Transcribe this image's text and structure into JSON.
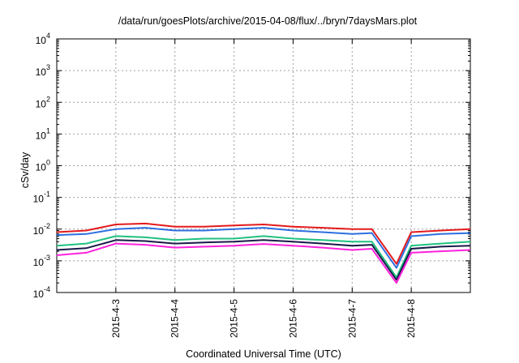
{
  "chart_data": {
    "type": "line",
    "title": "/data/run/goesPlots/archive/2015-04-08/flux/../bryn/7daysMars.plot",
    "xlabel": "Coordinated Universal Time (UTC)",
    "ylabel": "cSv/day",
    "yscale": "log",
    "ylim": [
      0.0001,
      10000
    ],
    "y_ticks": [
      {
        "base": "10",
        "exp": "-4"
      },
      {
        "base": "10",
        "exp": "-3"
      },
      {
        "base": "10",
        "exp": "-2"
      },
      {
        "base": "10",
        "exp": "-1"
      },
      {
        "base": "10",
        "exp": "0"
      },
      {
        "base": "10",
        "exp": "1"
      },
      {
        "base": "10",
        "exp": "2"
      },
      {
        "base": "10",
        "exp": "3"
      },
      {
        "base": "10",
        "exp": "4"
      }
    ],
    "xlim": [
      "2015-04-02",
      "2015-04-09"
    ],
    "x_ticks": [
      "2015-4-3",
      "2015-4-4",
      "2015-4-5",
      "2015-4-6",
      "2015-4-7",
      "2015-4-8"
    ],
    "grid": true,
    "x": [
      "2015-04-02",
      "2015-04-02 12:00",
      "2015-04-03",
      "2015-04-03 12:00",
      "2015-04-04",
      "2015-04-04 12:00",
      "2015-04-05",
      "2015-04-05 12:00",
      "2015-04-06",
      "2015-04-06 12:00",
      "2015-04-07",
      "2015-04-07 08:00",
      "2015-04-07 18:00",
      "2015-04-08",
      "2015-04-08 12:00",
      "2015-04-09"
    ],
    "series": [
      {
        "color": "#e41a1c",
        "values": [
          0.008,
          0.009,
          0.014,
          0.015,
          0.012,
          0.012,
          0.013,
          0.014,
          0.012,
          0.011,
          0.01,
          0.01,
          0.0008,
          0.008,
          0.009,
          0.01
        ]
      },
      {
        "color": "#2c6fe0",
        "values": [
          0.0065,
          0.007,
          0.01,
          0.011,
          0.009,
          0.009,
          0.01,
          0.011,
          0.009,
          0.008,
          0.007,
          0.0075,
          0.0006,
          0.006,
          0.007,
          0.0075
        ]
      },
      {
        "color": "#20c080",
        "values": [
          0.003,
          0.0035,
          0.006,
          0.0055,
          0.0045,
          0.005,
          0.005,
          0.006,
          0.005,
          0.0045,
          0.004,
          0.004,
          0.0003,
          0.003,
          0.0035,
          0.004
        ]
      },
      {
        "color": "#1a1a4a",
        "values": [
          0.0022,
          0.0025,
          0.0045,
          0.0042,
          0.0035,
          0.0038,
          0.004,
          0.0045,
          0.004,
          0.0035,
          0.003,
          0.0032,
          0.00025,
          0.0024,
          0.0028,
          0.003
        ]
      },
      {
        "color": "#ff22dd",
        "values": [
          0.0015,
          0.0018,
          0.0035,
          0.0032,
          0.0026,
          0.0028,
          0.003,
          0.0034,
          0.003,
          0.0026,
          0.0022,
          0.0024,
          0.0002,
          0.0018,
          0.002,
          0.0022
        ]
      }
    ]
  }
}
